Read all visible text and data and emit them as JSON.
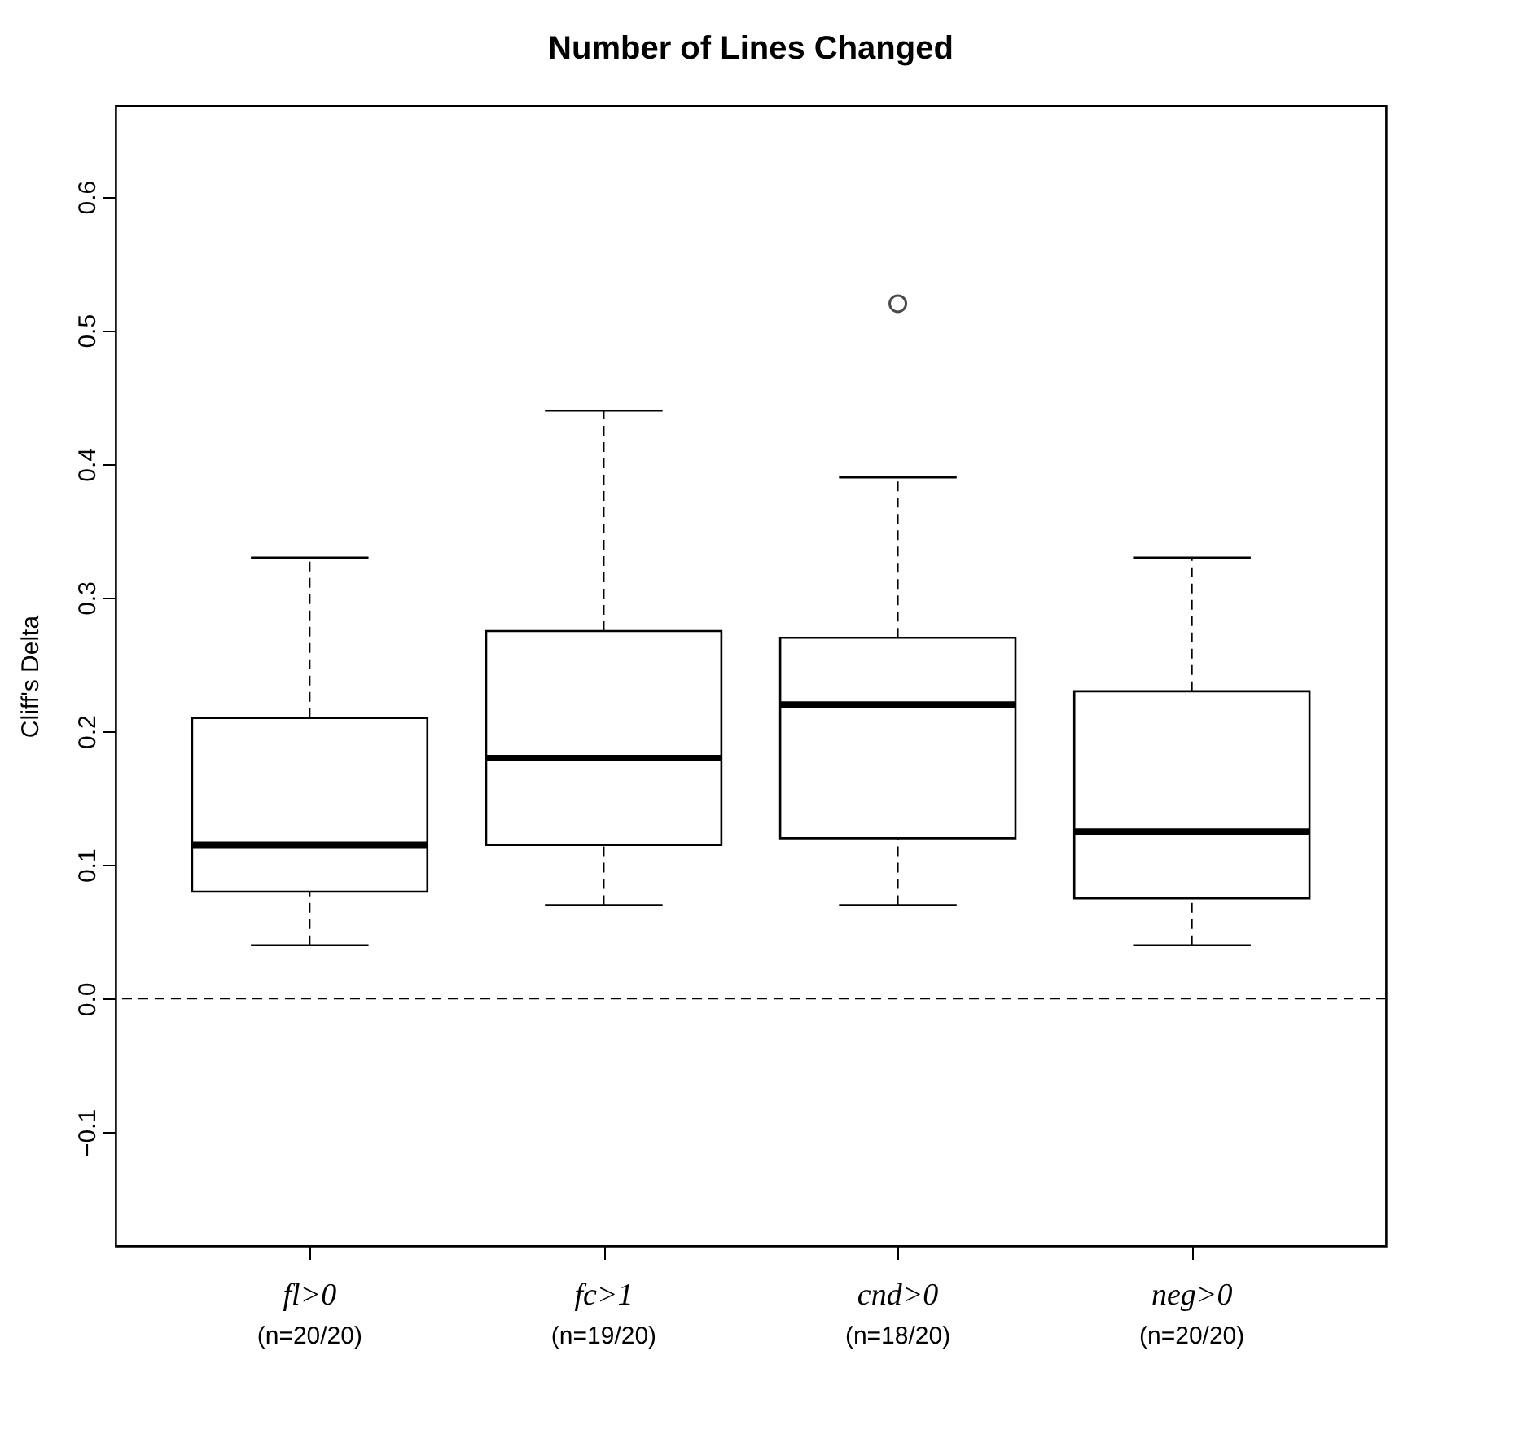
{
  "chart_data": {
    "type": "box",
    "title": "Number of Lines Changed",
    "ylabel": "Cliff's Delta",
    "categories": [
      "fl>0",
      "fc>1",
      "cnd>0",
      "neg>0"
    ],
    "boxes": [
      {
        "low": 0.04,
        "q1": 0.08,
        "median": 0.115,
        "q3": 0.21,
        "high": 0.33
      },
      {
        "low": 0.07,
        "q1": 0.115,
        "median": 0.18,
        "q3": 0.275,
        "high": 0.44
      },
      {
        "low": 0.07,
        "q1": 0.12,
        "median": 0.22,
        "q3": 0.27,
        "high": 0.39,
        "outliers": [
          0.52
        ]
      },
      {
        "low": 0.04,
        "q1": 0.075,
        "median": 0.125,
        "q3": 0.23,
        "high": 0.33
      }
    ],
    "ylim": [
      -0.185,
      0.668
    ],
    "yticks": [
      -0.1,
      {
        "value": 0,
        "label": "0.0"
      },
      0.1,
      0.2,
      0.3,
      0.4,
      0.5,
      0.6
    ],
    "ref_lines": [
      {
        "axis": "y",
        "value": 0,
        "line_style": "dashed"
      }
    ],
    "annotations": [
      "(n=20/20)",
      "(n=19/20)",
      "(n=18/20)",
      "(n=20/20)"
    ],
    "grid": false
  }
}
